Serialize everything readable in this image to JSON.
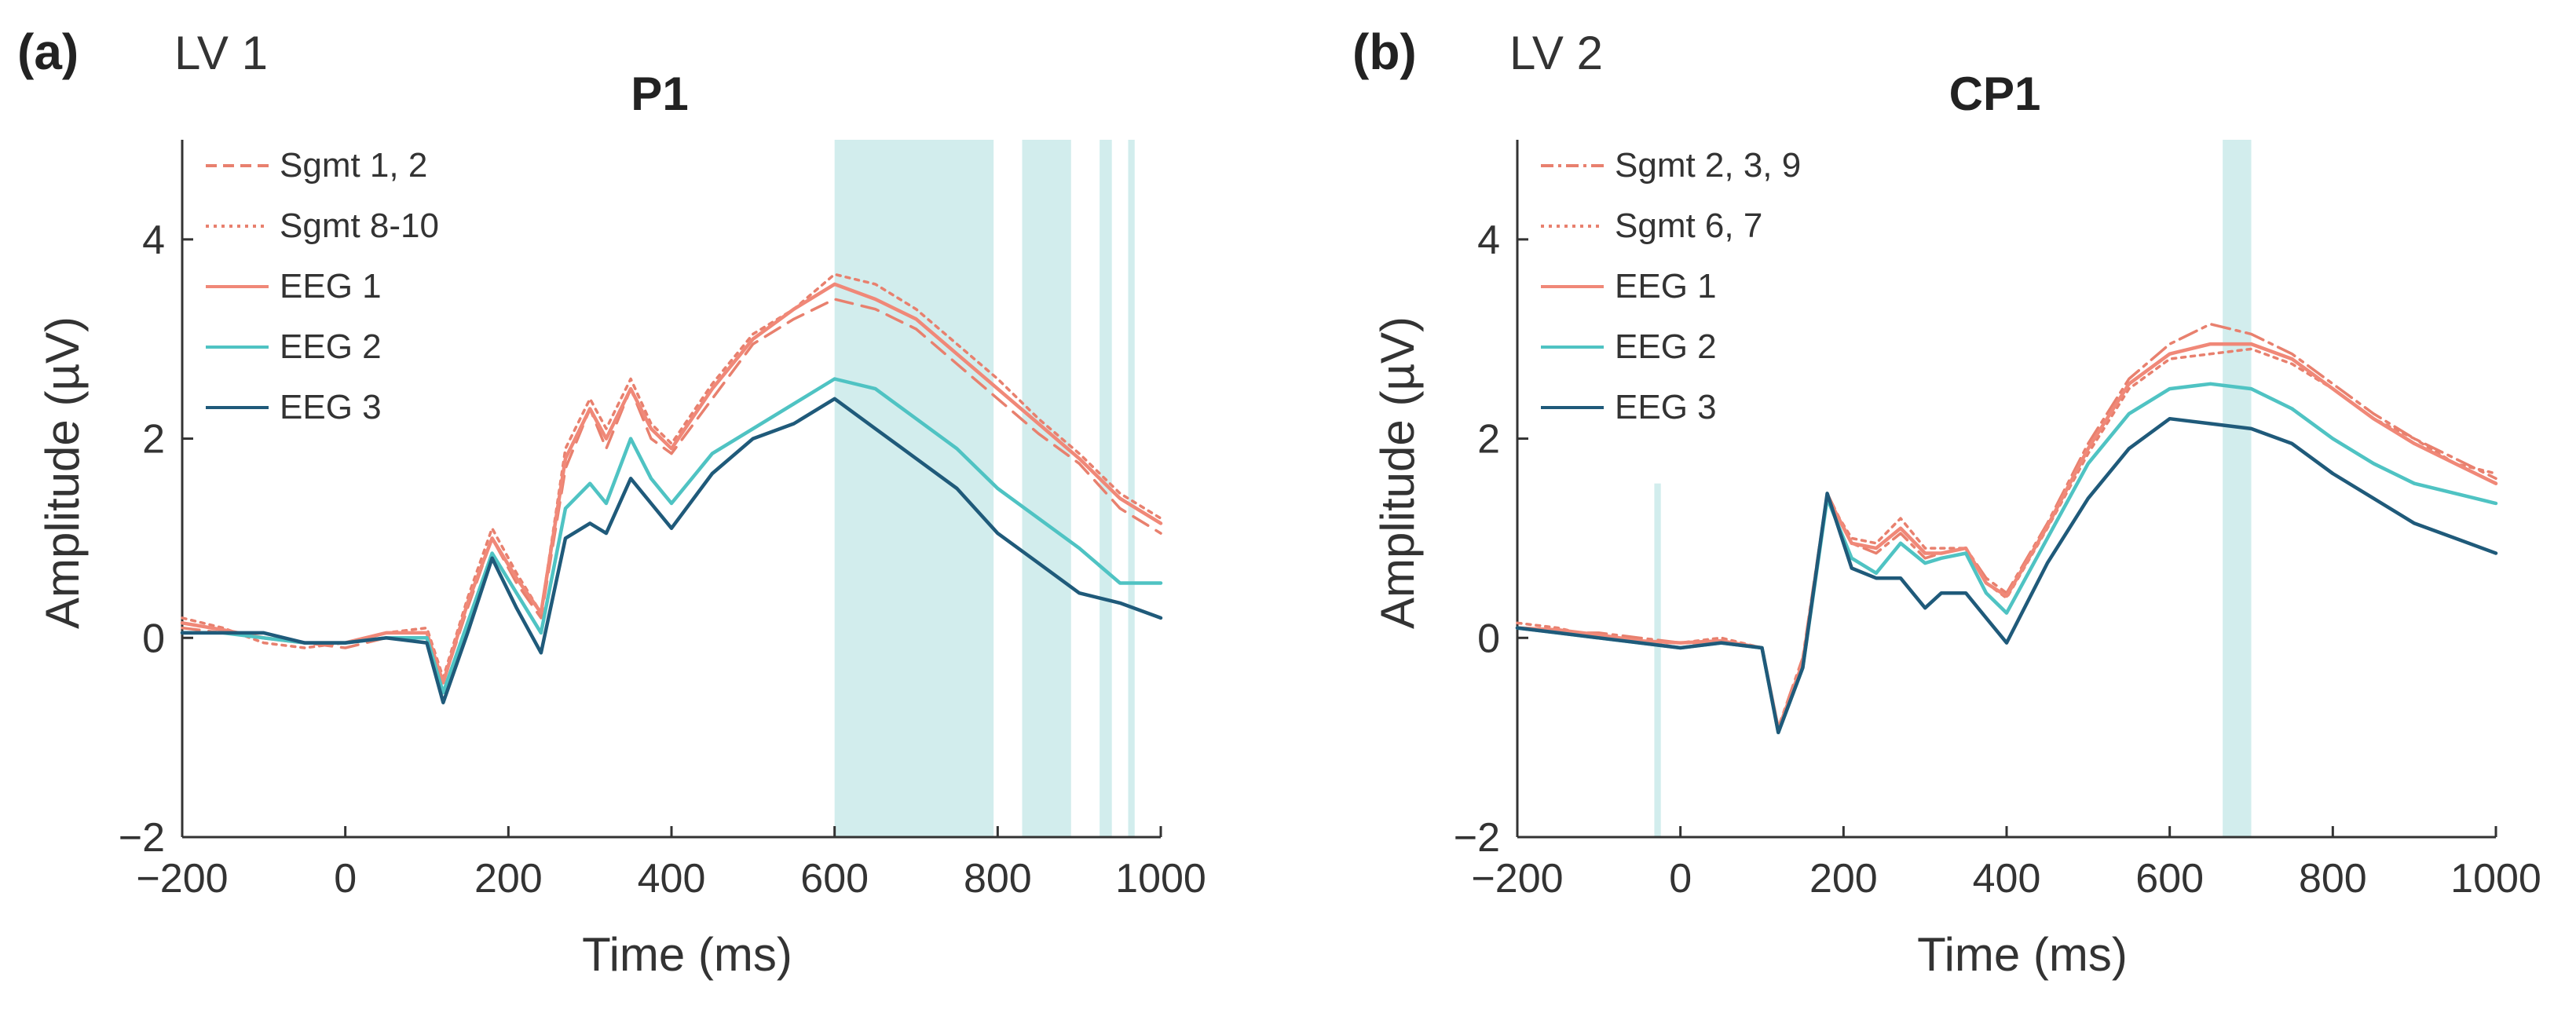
{
  "colors": {
    "sgmt": "#e8806e",
    "eeg1": "#f08878",
    "eeg2": "#4fc3c3",
    "eeg3": "#1f5a7a",
    "highlight": "#bfe6e6",
    "axis": "#333333",
    "text": "#333333"
  },
  "chart_data": [
    {
      "type": "line",
      "panel_label": "(a)",
      "lv_label": "LV 1",
      "title": "P1",
      "xlabel": "Time (ms)",
      "ylabel": "Amplitude (µV)",
      "xlim": [
        -200,
        1000
      ],
      "ylim": [
        -2,
        5
      ],
      "xticks": [
        -200,
        0,
        200,
        400,
        600,
        800,
        1000
      ],
      "yticks": [
        -2,
        0,
        2,
        4
      ],
      "legend_position": "top-left",
      "highlight_intervals_ms": [
        [
          600,
          795
        ],
        [
          830,
          890
        ],
        [
          925,
          940
        ],
        [
          960,
          968
        ]
      ],
      "x": [
        -200,
        -150,
        -100,
        -50,
        0,
        50,
        100,
        120,
        150,
        180,
        210,
        240,
        270,
        300,
        320,
        350,
        375,
        400,
        450,
        500,
        550,
        600,
        650,
        700,
        750,
        800,
        850,
        900,
        950,
        1000
      ],
      "series": [
        {
          "name": "Sgmt 1, 2",
          "style": "dashed",
          "color_key": "sgmt",
          "values": [
            0.1,
            0.05,
            0.0,
            -0.05,
            -0.1,
            0.0,
            0.0,
            -0.45,
            0.3,
            1.0,
            0.55,
            0.2,
            1.7,
            2.3,
            1.9,
            2.5,
            2.0,
            1.85,
            2.4,
            2.95,
            3.2,
            3.4,
            3.3,
            3.1,
            2.75,
            2.4,
            2.05,
            1.75,
            1.3,
            1.05
          ]
        },
        {
          "name": "Sgmt 8-10",
          "style": "dotted",
          "color_key": "sgmt",
          "values": [
            0.2,
            0.1,
            -0.05,
            -0.1,
            -0.05,
            0.05,
            0.1,
            -0.4,
            0.4,
            1.1,
            0.65,
            0.25,
            1.9,
            2.4,
            2.1,
            2.6,
            2.15,
            1.95,
            2.55,
            3.05,
            3.3,
            3.65,
            3.55,
            3.3,
            2.95,
            2.6,
            2.2,
            1.85,
            1.45,
            1.2
          ]
        },
        {
          "name": "EEG 1",
          "style": "solid",
          "color_key": "eeg1",
          "values": [
            0.15,
            0.08,
            0.0,
            -0.05,
            -0.05,
            0.05,
            0.05,
            -0.45,
            0.35,
            1.0,
            0.6,
            0.25,
            1.8,
            2.3,
            2.0,
            2.5,
            2.1,
            1.9,
            2.5,
            3.0,
            3.3,
            3.55,
            3.4,
            3.2,
            2.85,
            2.5,
            2.15,
            1.8,
            1.4,
            1.15
          ]
        },
        {
          "name": "EEG 2",
          "style": "solid",
          "color_key": "eeg2",
          "values": [
            0.05,
            0.05,
            0.0,
            -0.05,
            -0.05,
            0.0,
            0.0,
            -0.55,
            0.15,
            0.85,
            0.45,
            0.05,
            1.3,
            1.55,
            1.35,
            2.0,
            1.6,
            1.35,
            1.85,
            2.1,
            2.35,
            2.6,
            2.5,
            2.2,
            1.9,
            1.5,
            1.2,
            0.9,
            0.55,
            0.55
          ]
        },
        {
          "name": "EEG 3",
          "style": "solid",
          "color_key": "eeg3",
          "values": [
            0.05,
            0.05,
            0.05,
            -0.05,
            -0.05,
            0.0,
            -0.05,
            -0.65,
            0.05,
            0.8,
            0.3,
            -0.15,
            1.0,
            1.15,
            1.05,
            1.6,
            1.35,
            1.1,
            1.65,
            2.0,
            2.15,
            2.4,
            2.1,
            1.8,
            1.5,
            1.05,
            0.75,
            0.45,
            0.35,
            0.2
          ]
        }
      ]
    },
    {
      "type": "line",
      "panel_label": "(b)",
      "lv_label": "LV 2",
      "title": "CP1",
      "xlabel": "Time (ms)",
      "ylabel": "Amplitude (µV)",
      "xlim": [
        -200,
        1000
      ],
      "ylim": [
        -2,
        5
      ],
      "xticks": [
        -200,
        0,
        200,
        400,
        600,
        800,
        1000
      ],
      "yticks": [
        -2,
        0,
        2,
        4
      ],
      "legend_position": "top-left",
      "highlight_intervals_ms": [
        [
          -32,
          -24
        ],
        [
          665,
          700
        ]
      ],
      "x": [
        -200,
        -150,
        -100,
        -50,
        0,
        50,
        100,
        120,
        150,
        180,
        210,
        240,
        270,
        300,
        320,
        350,
        375,
        400,
        450,
        500,
        550,
        600,
        650,
        700,
        750,
        800,
        850,
        900,
        950,
        1000
      ],
      "series": [
        {
          "name": "Sgmt 2, 3, 9",
          "style": "dashdot",
          "color_key": "sgmt",
          "values": [
            0.1,
            0.05,
            0.05,
            0.0,
            -0.05,
            -0.05,
            -0.1,
            -0.9,
            -0.2,
            1.45,
            0.95,
            0.85,
            1.05,
            0.8,
            0.85,
            0.9,
            0.6,
            0.45,
            1.15,
            1.95,
            2.6,
            2.95,
            3.15,
            3.05,
            2.85,
            2.55,
            2.25,
            2.0,
            1.8,
            1.6
          ]
        },
        {
          "name": "Sgmt 6, 7",
          "style": "dotted",
          "color_key": "sgmt",
          "values": [
            0.15,
            0.1,
            0.0,
            -0.05,
            -0.05,
            0.0,
            -0.1,
            -0.95,
            -0.3,
            1.4,
            1.0,
            0.95,
            1.2,
            0.9,
            0.9,
            0.9,
            0.55,
            0.4,
            1.1,
            1.85,
            2.5,
            2.8,
            2.85,
            2.9,
            2.75,
            2.5,
            2.2,
            2.0,
            1.75,
            1.65
          ]
        },
        {
          "name": "EEG 1",
          "style": "solid",
          "color_key": "eeg1",
          "values": [
            0.1,
            0.08,
            0.03,
            -0.03,
            -0.05,
            -0.03,
            -0.1,
            -0.92,
            -0.25,
            1.42,
            0.95,
            0.9,
            1.1,
            0.85,
            0.85,
            0.9,
            0.55,
            0.42,
            1.12,
            1.9,
            2.55,
            2.85,
            2.95,
            2.95,
            2.8,
            2.5,
            2.2,
            1.95,
            1.75,
            1.55
          ]
        },
        {
          "name": "EEG 2",
          "style": "solid",
          "color_key": "eeg2",
          "values": [
            0.1,
            0.05,
            0.0,
            -0.05,
            -0.1,
            -0.05,
            -0.1,
            -0.95,
            -0.3,
            1.4,
            0.8,
            0.65,
            0.95,
            0.75,
            0.8,
            0.85,
            0.45,
            0.25,
            1.0,
            1.75,
            2.25,
            2.5,
            2.55,
            2.5,
            2.3,
            2.0,
            1.75,
            1.55,
            1.45,
            1.35
          ]
        },
        {
          "name": "EEG 3",
          "style": "solid",
          "color_key": "eeg3",
          "values": [
            0.1,
            0.05,
            0.0,
            -0.05,
            -0.1,
            -0.05,
            -0.1,
            -0.95,
            -0.3,
            1.45,
            0.7,
            0.6,
            0.6,
            0.3,
            0.45,
            0.45,
            0.2,
            -0.05,
            0.75,
            1.4,
            1.9,
            2.2,
            2.15,
            2.1,
            1.95,
            1.65,
            1.4,
            1.15,
            1.0,
            0.85
          ]
        }
      ]
    }
  ]
}
